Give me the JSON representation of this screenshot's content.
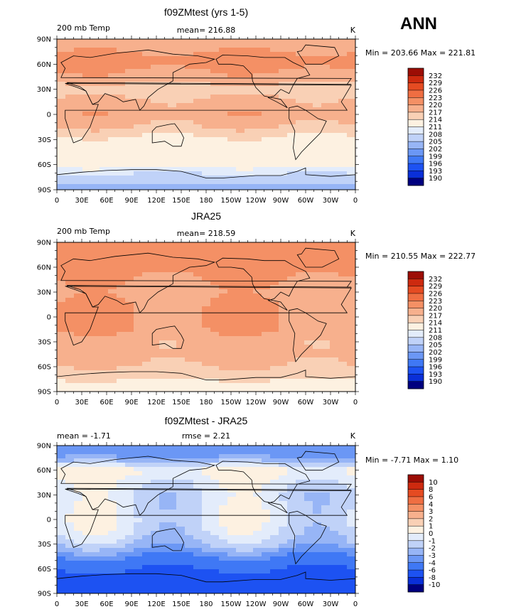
{
  "season": "ANN",
  "x_ticks": [
    "0",
    "30E",
    "60E",
    "90E",
    "120E",
    "150E",
    "180",
    "150W",
    "120W",
    "90W",
    "60W",
    "30W",
    "0"
  ],
  "y_ticks": [
    "90N",
    "60N",
    "30N",
    "0",
    "30S",
    "60S",
    "90S"
  ],
  "abs_palette": [
    "#00007f",
    "#0a2fd8",
    "#1d52f2",
    "#3f78f5",
    "#6b97f5",
    "#97b5f6",
    "#c0d2f8",
    "#e3ecfb",
    "#fdf1e1",
    "#f9d0b5",
    "#f7b08d",
    "#f49065",
    "#ef6e42",
    "#e54b22",
    "#cd2a0f",
    "#9c0d05"
  ],
  "diff_palette": [
    "#00007f",
    "#0a2fd8",
    "#1d52f2",
    "#3f78f5",
    "#6b97f5",
    "#97b5f6",
    "#c0d2f8",
    "#e3ecfb",
    "#fdf1e1",
    "#f9d0b5",
    "#f7b08d",
    "#f49065",
    "#ef6e42",
    "#e54b22",
    "#cd2a0f",
    "#9c0d05"
  ],
  "panels": [
    {
      "title": "f09ZMtest (yrs 1-5)",
      "left_label": "200 mb Temp",
      "center_label": "mean= 216.88",
      "right_label": "K",
      "minmax": "Min = 203.66 Max = 221.81",
      "colorbar_labels": [
        "232",
        "229",
        "226",
        "223",
        "220",
        "217",
        "214",
        "211",
        "208",
        "205",
        "202",
        "199",
        "196",
        "193",
        "190"
      ]
    },
    {
      "title": "JRA25",
      "left_label": "200 mb Temp",
      "center_label": "mean= 218.59",
      "right_label": "K",
      "minmax": "Min = 210.55 Max = 222.77",
      "colorbar_labels": [
        "232",
        "229",
        "226",
        "223",
        "220",
        "217",
        "214",
        "211",
        "208",
        "205",
        "202",
        "199",
        "196",
        "193",
        "190"
      ]
    },
    {
      "title": "f09ZMtest - JRA25",
      "left_label": "mean =   -1.71",
      "center_label": "rmse =    2.21",
      "right_label": "K",
      "minmax": "Min =   -7.71 Max =    1.10",
      "colorbar_labels": [
        "10",
        "8",
        "6",
        "4",
        "3",
        "2",
        "1",
        "0",
        "-1",
        "-2",
        "-3",
        "-4",
        "-6",
        "-8",
        "-10"
      ]
    }
  ],
  "chart_data": [
    {
      "type": "heatmap",
      "title": "f09ZMtest (yrs 1-5)",
      "variable": "200 mb Temp",
      "units": "K",
      "mean": 216.88,
      "min": 203.66,
      "max": 221.81,
      "levels": [
        190,
        193,
        196,
        199,
        202,
        205,
        208,
        211,
        214,
        217,
        220,
        223,
        226,
        229,
        232
      ],
      "x_range": [
        0,
        360
      ],
      "y_range": [
        -90,
        90
      ],
      "zonal_profile_lat": [
        90,
        75,
        60,
        45,
        30,
        15,
        0,
        -15,
        -30,
        -45,
        -60,
        -75,
        -90
      ],
      "zonal_profile_value": [
        219,
        220,
        221,
        219,
        215,
        218,
        219,
        217,
        213,
        212,
        213,
        206,
        204
      ]
    },
    {
      "type": "heatmap",
      "title": "JRA25",
      "variable": "200 mb Temp",
      "units": "K",
      "mean": 218.59,
      "min": 210.55,
      "max": 222.77,
      "levels": [
        190,
        193,
        196,
        199,
        202,
        205,
        208,
        211,
        214,
        217,
        220,
        223,
        226,
        229,
        232
      ],
      "x_range": [
        0,
        360
      ],
      "y_range": [
        -90,
        90
      ],
      "zonal_profile_lat": [
        90,
        75,
        60,
        45,
        30,
        15,
        0,
        -15,
        -30,
        -45,
        -60,
        -75,
        -90
      ],
      "zonal_profile_value": [
        221,
        222,
        221,
        220,
        219,
        220,
        220,
        220,
        218,
        218,
        217,
        214,
        213
      ]
    },
    {
      "type": "heatmap",
      "title": "f09ZMtest - JRA25",
      "units": "K",
      "mean": -1.71,
      "rmse": 2.21,
      "min": -7.71,
      "max": 1.1,
      "levels": [
        -10,
        -8,
        -6,
        -4,
        -3,
        -2,
        -1,
        0,
        1,
        2,
        3,
        4,
        6,
        8,
        10
      ],
      "x_range": [
        0,
        360
      ],
      "y_range": [
        -90,
        90
      ],
      "zonal_profile_lat": [
        90,
        75,
        60,
        45,
        30,
        15,
        0,
        -15,
        -30,
        -45,
        -60,
        -75,
        -90
      ],
      "zonal_profile_value": [
        -4,
        -3,
        0.5,
        -0.5,
        -1,
        -0.8,
        -0.6,
        -1,
        -2,
        -4,
        -6,
        -7,
        -7
      ]
    }
  ]
}
